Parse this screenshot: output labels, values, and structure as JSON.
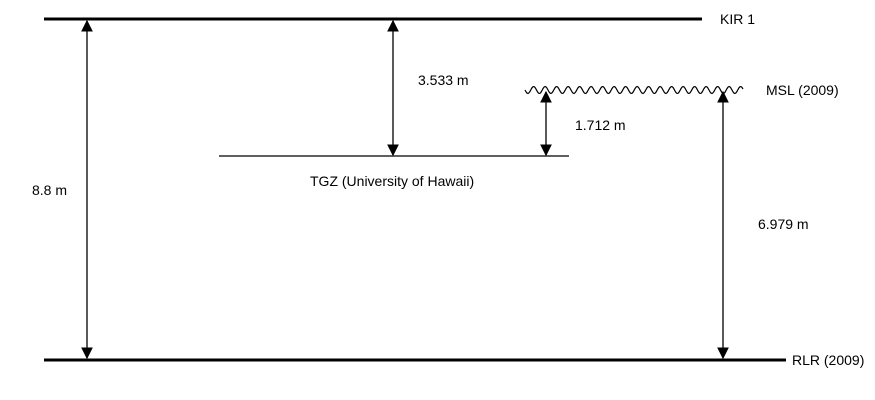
{
  "diagram": {
    "levels": {
      "kir1": "KIR 1",
      "msl": "MSL (2009)",
      "tgz": "TGZ (University of Hawaii)",
      "rlr": "RLR (2009)"
    },
    "distances": {
      "kir1_to_rlr": "8.8 m",
      "kir1_to_tgz": "3.533 m",
      "msl_to_tgz": "1.712 m",
      "msl_to_rlr": "6.979 m"
    },
    "colors": {
      "line": "#000000",
      "background": "#ffffff"
    }
  }
}
